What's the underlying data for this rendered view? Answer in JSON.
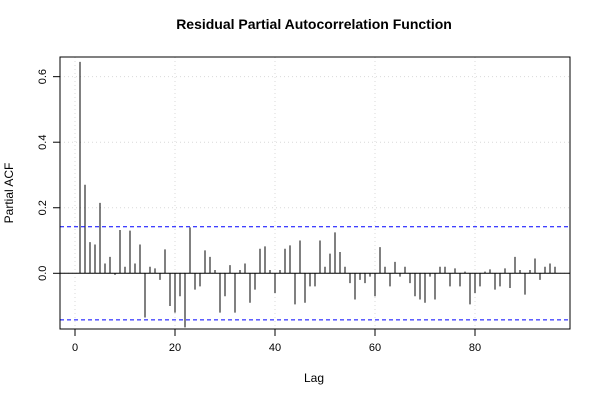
{
  "chart_data": {
    "type": "bar",
    "title": "Residual Partial Autocorrelation Function",
    "xlabel": "Lag",
    "ylabel": "Partial ACF",
    "xlim": [
      -3,
      99
    ],
    "ylim": [
      -0.17,
      0.66
    ],
    "x_ticks": [
      0,
      20,
      40,
      60,
      80
    ],
    "y_ticks": [
      0.0,
      0.2,
      0.4,
      0.6
    ],
    "y_tick_labels": [
      "0.0",
      "0.2",
      "0.4",
      "0.6"
    ],
    "grid": true,
    "confidence_limits": [
      0.142,
      -0.142
    ],
    "confidence_color": "#0000ff",
    "bar_color": "#000000",
    "lags": [
      1,
      2,
      3,
      4,
      5,
      6,
      7,
      8,
      9,
      10,
      11,
      12,
      13,
      14,
      15,
      16,
      17,
      18,
      19,
      20,
      21,
      22,
      23,
      24,
      25,
      26,
      27,
      28,
      29,
      30,
      31,
      32,
      33,
      34,
      35,
      36,
      37,
      38,
      39,
      40,
      41,
      42,
      43,
      44,
      45,
      46,
      47,
      48,
      49,
      50,
      51,
      52,
      53,
      54,
      55,
      56,
      57,
      58,
      59,
      60,
      61,
      62,
      63,
      64,
      65,
      66,
      67,
      68,
      69,
      70,
      71,
      72,
      73,
      74,
      75,
      76,
      77,
      78,
      79,
      80,
      81,
      82,
      83,
      84,
      85,
      86,
      87,
      88,
      89,
      90,
      91,
      92,
      93,
      94,
      95,
      96
    ],
    "values": [
      0.645,
      0.27,
      0.095,
      0.088,
      0.215,
      0.03,
      0.05,
      -0.005,
      0.132,
      0.02,
      0.13,
      0.03,
      0.088,
      -0.135,
      0.02,
      0.015,
      -0.02,
      0.073,
      -0.1,
      -0.12,
      -0.07,
      -0.165,
      0.14,
      -0.05,
      -0.04,
      0.07,
      0.05,
      0.01,
      -0.12,
      -0.07,
      0.025,
      -0.12,
      0.01,
      0.03,
      -0.09,
      -0.05,
      0.075,
      0.082,
      0.01,
      -0.06,
      0.01,
      0.075,
      0.085,
      -0.095,
      0.1,
      -0.09,
      -0.04,
      -0.04,
      0.1,
      0.02,
      0.06,
      0.125,
      0.065,
      0.02,
      -0.03,
      -0.08,
      -0.02,
      -0.03,
      -0.01,
      -0.07,
      0.08,
      0.02,
      -0.04,
      0.035,
      -0.01,
      0.02,
      -0.03,
      -0.07,
      -0.08,
      -0.09,
      -0.01,
      -0.08,
      0.02,
      0.02,
      -0.04,
      0.015,
      -0.04,
      0.005,
      -0.095,
      -0.06,
      -0.04,
      0.005,
      0.012,
      -0.05,
      -0.04,
      0.015,
      -0.045,
      0.05,
      0.01,
      -0.065,
      0.01,
      0.045,
      -0.02,
      0.02,
      0.03,
      0.02
    ]
  }
}
